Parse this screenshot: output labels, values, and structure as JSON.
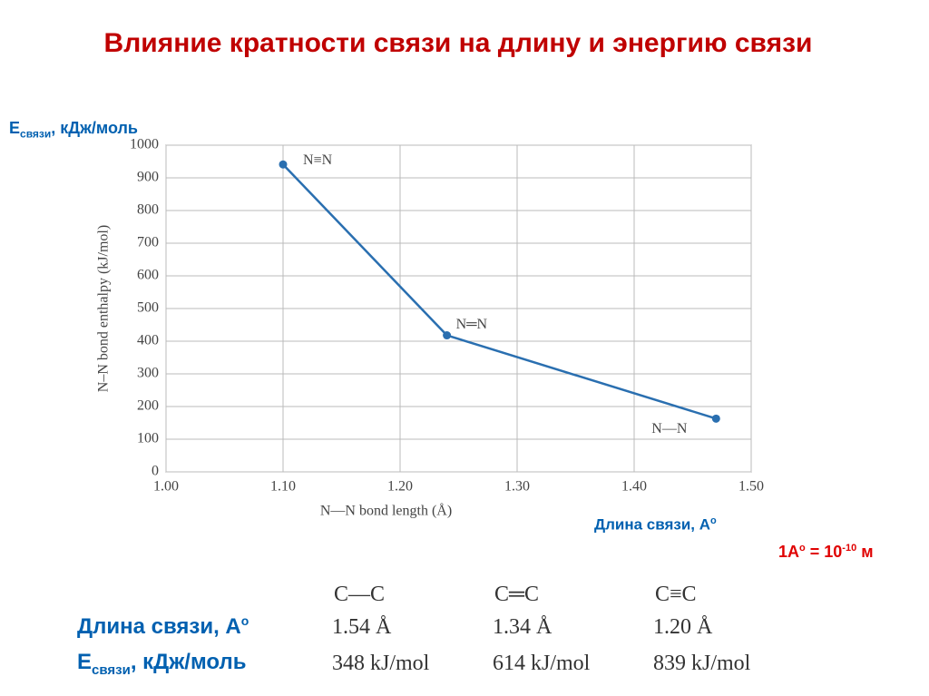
{
  "title": "Влияние кратности связи на длину и энергию связи",
  "y_unit_label": {
    "main": "E",
    "sub": "связи",
    "rest": ", кДж/моль"
  },
  "x_unit_label": {
    "text": "Длина связи, А",
    "sup": "o"
  },
  "unit_note": {
    "a": "1А",
    "sup1": "o",
    "eq": " = 10",
    "sup2": "-10",
    "unit": " м"
  },
  "chart_data": {
    "type": "line",
    "x": [
      1.1,
      1.24,
      1.47
    ],
    "values": [
      941,
      418,
      163
    ],
    "point_labels": [
      "N≡N",
      "N═N",
      "N—N"
    ],
    "color": "#2a6fb0",
    "xlabel": "N—N bond length (Å)",
    "ylabel": "N–N bond enthalpy (kJ/mol)",
    "xlim": [
      1.0,
      1.5
    ],
    "xticks": [
      {
        "value": 1.0,
        "label": "1.00"
      },
      {
        "value": 1.1,
        "label": "1.10"
      },
      {
        "value": 1.2,
        "label": "1.20"
      },
      {
        "value": 1.3,
        "label": "1.30"
      },
      {
        "value": 1.4,
        "label": "1.40"
      },
      {
        "value": 1.5,
        "label": "1.50"
      }
    ],
    "ylim": [
      0,
      1000
    ],
    "yticks": [
      0,
      100,
      200,
      300,
      400,
      500,
      600,
      700,
      800,
      900,
      1000
    ],
    "grid": true
  },
  "table": {
    "headers": [
      "C—C",
      "C═C",
      "C≡C"
    ],
    "rows": [
      {
        "label": {
          "text": "Длина связи, А",
          "sup": "o"
        },
        "cells": [
          "1.54 Å",
          "1.34 Å",
          "1.20 Å"
        ]
      },
      {
        "label": {
          "main": "E",
          "sub": "связи",
          "rest": ", кДж/моль"
        },
        "cells": [
          "348 kJ/mol",
          "614 kJ/mol",
          "839 kJ/mol"
        ]
      }
    ]
  }
}
